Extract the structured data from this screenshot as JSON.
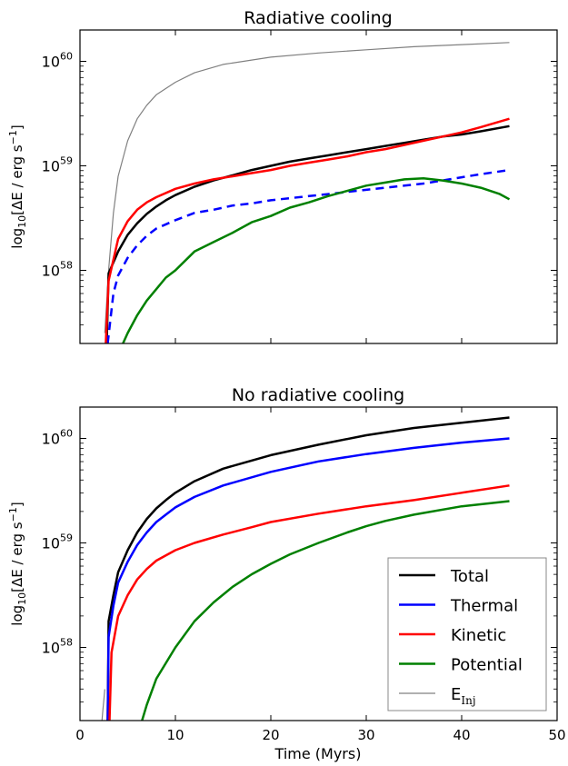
{
  "chart_data": [
    {
      "type": "line",
      "title": "Radiative cooling",
      "ylabel": "log10[ΔE / erg s⁻¹]",
      "ylabel_prefix": "log",
      "ylabel_sub": "10",
      "ylabel_mid": "[ΔE / erg s",
      "ylabel_sup": "−1",
      "ylabel_end": "]",
      "xlabel": "",
      "xlim": [
        0,
        50
      ],
      "ylim_log10": [
        57.3,
        60.3
      ],
      "xticks": [
        0,
        10,
        20,
        30,
        40,
        50
      ],
      "show_x_tick_labels": false,
      "yticks": [
        {
          "base": "10",
          "exp": "58",
          "value": 58
        },
        {
          "base": "10",
          "exp": "59",
          "value": 59
        },
        {
          "base": "10",
          "exp": "60",
          "value": 60
        }
      ],
      "series": [
        {
          "key": "einj",
          "color": "#808080",
          "dash": "solid",
          "width": 1.2,
          "x": [
            2.6,
            3,
            3.5,
            4,
            5,
            6,
            7,
            8,
            10,
            12,
            15,
            20,
            25,
            30,
            35,
            40,
            45
          ],
          "y": [
            57.4,
            58.0,
            58.55,
            58.9,
            59.24,
            59.45,
            59.58,
            59.68,
            59.8,
            59.89,
            59.97,
            60.04,
            60.08,
            60.11,
            60.14,
            60.16,
            60.18
          ]
        },
        {
          "key": "total",
          "color": "#000000",
          "dash": "solid",
          "width": 2.5,
          "x": [
            2.8,
            3,
            4,
            5,
            6,
            7,
            8,
            9,
            10,
            12,
            14,
            16,
            18,
            20,
            22,
            24,
            26,
            28,
            30,
            32,
            34,
            36,
            38,
            40,
            42,
            45
          ],
          "y": [
            57.3,
            57.97,
            58.18,
            58.34,
            58.45,
            58.54,
            58.61,
            58.67,
            58.72,
            58.8,
            58.86,
            58.91,
            58.96,
            59.0,
            59.04,
            59.07,
            59.1,
            59.13,
            59.16,
            59.19,
            59.22,
            59.25,
            59.28,
            59.3,
            59.33,
            59.38
          ]
        },
        {
          "key": "thermal",
          "color": "#0000ff",
          "dash": "dashed",
          "width": 2.5,
          "x": [
            2.9,
            3.5,
            4,
            5,
            6,
            7,
            8,
            10,
            12,
            14,
            16,
            18,
            20,
            22,
            24,
            26,
            28,
            30,
            32,
            34,
            36,
            38,
            40,
            42,
            45
          ],
          "y": [
            57.3,
            57.78,
            57.95,
            58.12,
            58.24,
            58.33,
            58.4,
            58.48,
            58.55,
            58.58,
            58.62,
            58.64,
            58.67,
            58.69,
            58.71,
            58.73,
            58.75,
            58.77,
            58.79,
            58.81,
            58.83,
            58.86,
            58.89,
            58.92,
            58.96
          ]
        },
        {
          "key": "kinetic",
          "color": "#ff0000",
          "dash": "solid",
          "width": 2.5,
          "x": [
            2.7,
            3,
            4,
            5,
            6,
            7,
            8,
            10,
            12,
            14,
            16,
            18,
            20,
            22,
            24,
            26,
            28,
            30,
            32,
            34,
            36,
            38,
            40,
            42,
            45
          ],
          "y": [
            57.3,
            57.9,
            58.3,
            58.47,
            58.58,
            58.65,
            58.7,
            58.78,
            58.83,
            58.87,
            58.9,
            58.93,
            58.96,
            59.0,
            59.03,
            59.06,
            59.09,
            59.13,
            59.16,
            59.2,
            59.24,
            59.28,
            59.32,
            59.37,
            59.45
          ]
        },
        {
          "key": "potential",
          "color": "#008000",
          "dash": "solid",
          "width": 2.5,
          "x": [
            4.5,
            5,
            6,
            7,
            8,
            9,
            10,
            12,
            14,
            16,
            18,
            20,
            22,
            24,
            26,
            28,
            30,
            32,
            34,
            36,
            38,
            40,
            42,
            44,
            45
          ],
          "y": [
            57.3,
            57.4,
            57.57,
            57.71,
            57.82,
            57.93,
            58.0,
            58.18,
            58.27,
            58.36,
            58.46,
            58.52,
            58.6,
            58.65,
            58.71,
            58.76,
            58.81,
            58.84,
            58.87,
            58.88,
            58.86,
            58.83,
            58.79,
            58.73,
            58.68
          ]
        }
      ]
    },
    {
      "type": "line",
      "title": "No radiative cooling",
      "ylabel": "log10[ΔE / erg s⁻¹]",
      "ylabel_prefix": "log",
      "ylabel_sub": "10",
      "ylabel_mid": "[ΔE / erg s",
      "ylabel_sup": "−1",
      "ylabel_end": "]",
      "xlabel": "Time (Myrs)",
      "xlim": [
        0,
        50
      ],
      "ylim_log10": [
        57.3,
        60.3
      ],
      "xticks": [
        0,
        10,
        20,
        30,
        40,
        50
      ],
      "show_x_tick_labels": true,
      "yticks": [
        {
          "base": "10",
          "exp": "58",
          "value": 58
        },
        {
          "base": "10",
          "exp": "59",
          "value": 59
        },
        {
          "base": "10",
          "exp": "60",
          "value": 60
        }
      ],
      "legend": {
        "placement": "lower right",
        "entries": [
          {
            "key": "total",
            "label": "Total"
          },
          {
            "key": "thermal",
            "label": "Thermal"
          },
          {
            "key": "kinetic",
            "label": "Kinetic"
          },
          {
            "key": "potential",
            "label": "Potential"
          },
          {
            "key": "einj",
            "label": "E",
            "sub": "Inj"
          }
        ]
      },
      "series": [
        {
          "key": "einj",
          "color": "#808080",
          "dash": "solid",
          "width": 1.2,
          "x": [
            2.3,
            2.4,
            2.5,
            2.6
          ],
          "y": [
            57.3,
            57.4,
            57.5,
            57.6
          ]
        },
        {
          "key": "total",
          "color": "#000000",
          "dash": "solid",
          "width": 2.5,
          "x": [
            2.9,
            3,
            3.5,
            4,
            5,
            6,
            7,
            8,
            9,
            10,
            12,
            15,
            20,
            25,
            30,
            35,
            40,
            45
          ],
          "y": [
            57.3,
            58.25,
            58.5,
            58.72,
            58.93,
            59.1,
            59.23,
            59.33,
            59.41,
            59.48,
            59.59,
            59.71,
            59.84,
            59.94,
            60.03,
            60.1,
            60.15,
            60.2
          ]
        },
        {
          "key": "thermal",
          "color": "#0000ff",
          "dash": "solid",
          "width": 2.5,
          "x": [
            2.9,
            3,
            3.5,
            4,
            5,
            6,
            7,
            8,
            9,
            10,
            12,
            15,
            20,
            25,
            30,
            35,
            40,
            45
          ],
          "y": [
            57.3,
            58.1,
            58.4,
            58.62,
            58.82,
            58.98,
            59.1,
            59.2,
            59.27,
            59.34,
            59.44,
            59.55,
            59.68,
            59.78,
            59.85,
            59.91,
            59.96,
            60.0
          ]
        },
        {
          "key": "kinetic",
          "color": "#ff0000",
          "dash": "solid",
          "width": 2.5,
          "x": [
            3.1,
            3.3,
            4,
            5,
            6,
            7,
            8,
            10,
            12,
            15,
            18,
            20,
            25,
            30,
            35,
            40,
            45
          ],
          "y": [
            57.3,
            57.95,
            58.3,
            58.5,
            58.65,
            58.75,
            58.83,
            58.93,
            59.0,
            59.08,
            59.15,
            59.2,
            59.28,
            59.35,
            59.41,
            59.48,
            59.55
          ]
        },
        {
          "key": "potential",
          "color": "#008000",
          "dash": "solid",
          "width": 2.5,
          "x": [
            6.5,
            7,
            8,
            10,
            12,
            14,
            16,
            18,
            20,
            22,
            25,
            28,
            30,
            32,
            35,
            40,
            45
          ],
          "y": [
            57.3,
            57.45,
            57.7,
            58.0,
            58.25,
            58.43,
            58.58,
            58.7,
            58.8,
            58.89,
            59.0,
            59.1,
            59.16,
            59.21,
            59.27,
            59.35,
            59.4
          ]
        }
      ]
    }
  ]
}
